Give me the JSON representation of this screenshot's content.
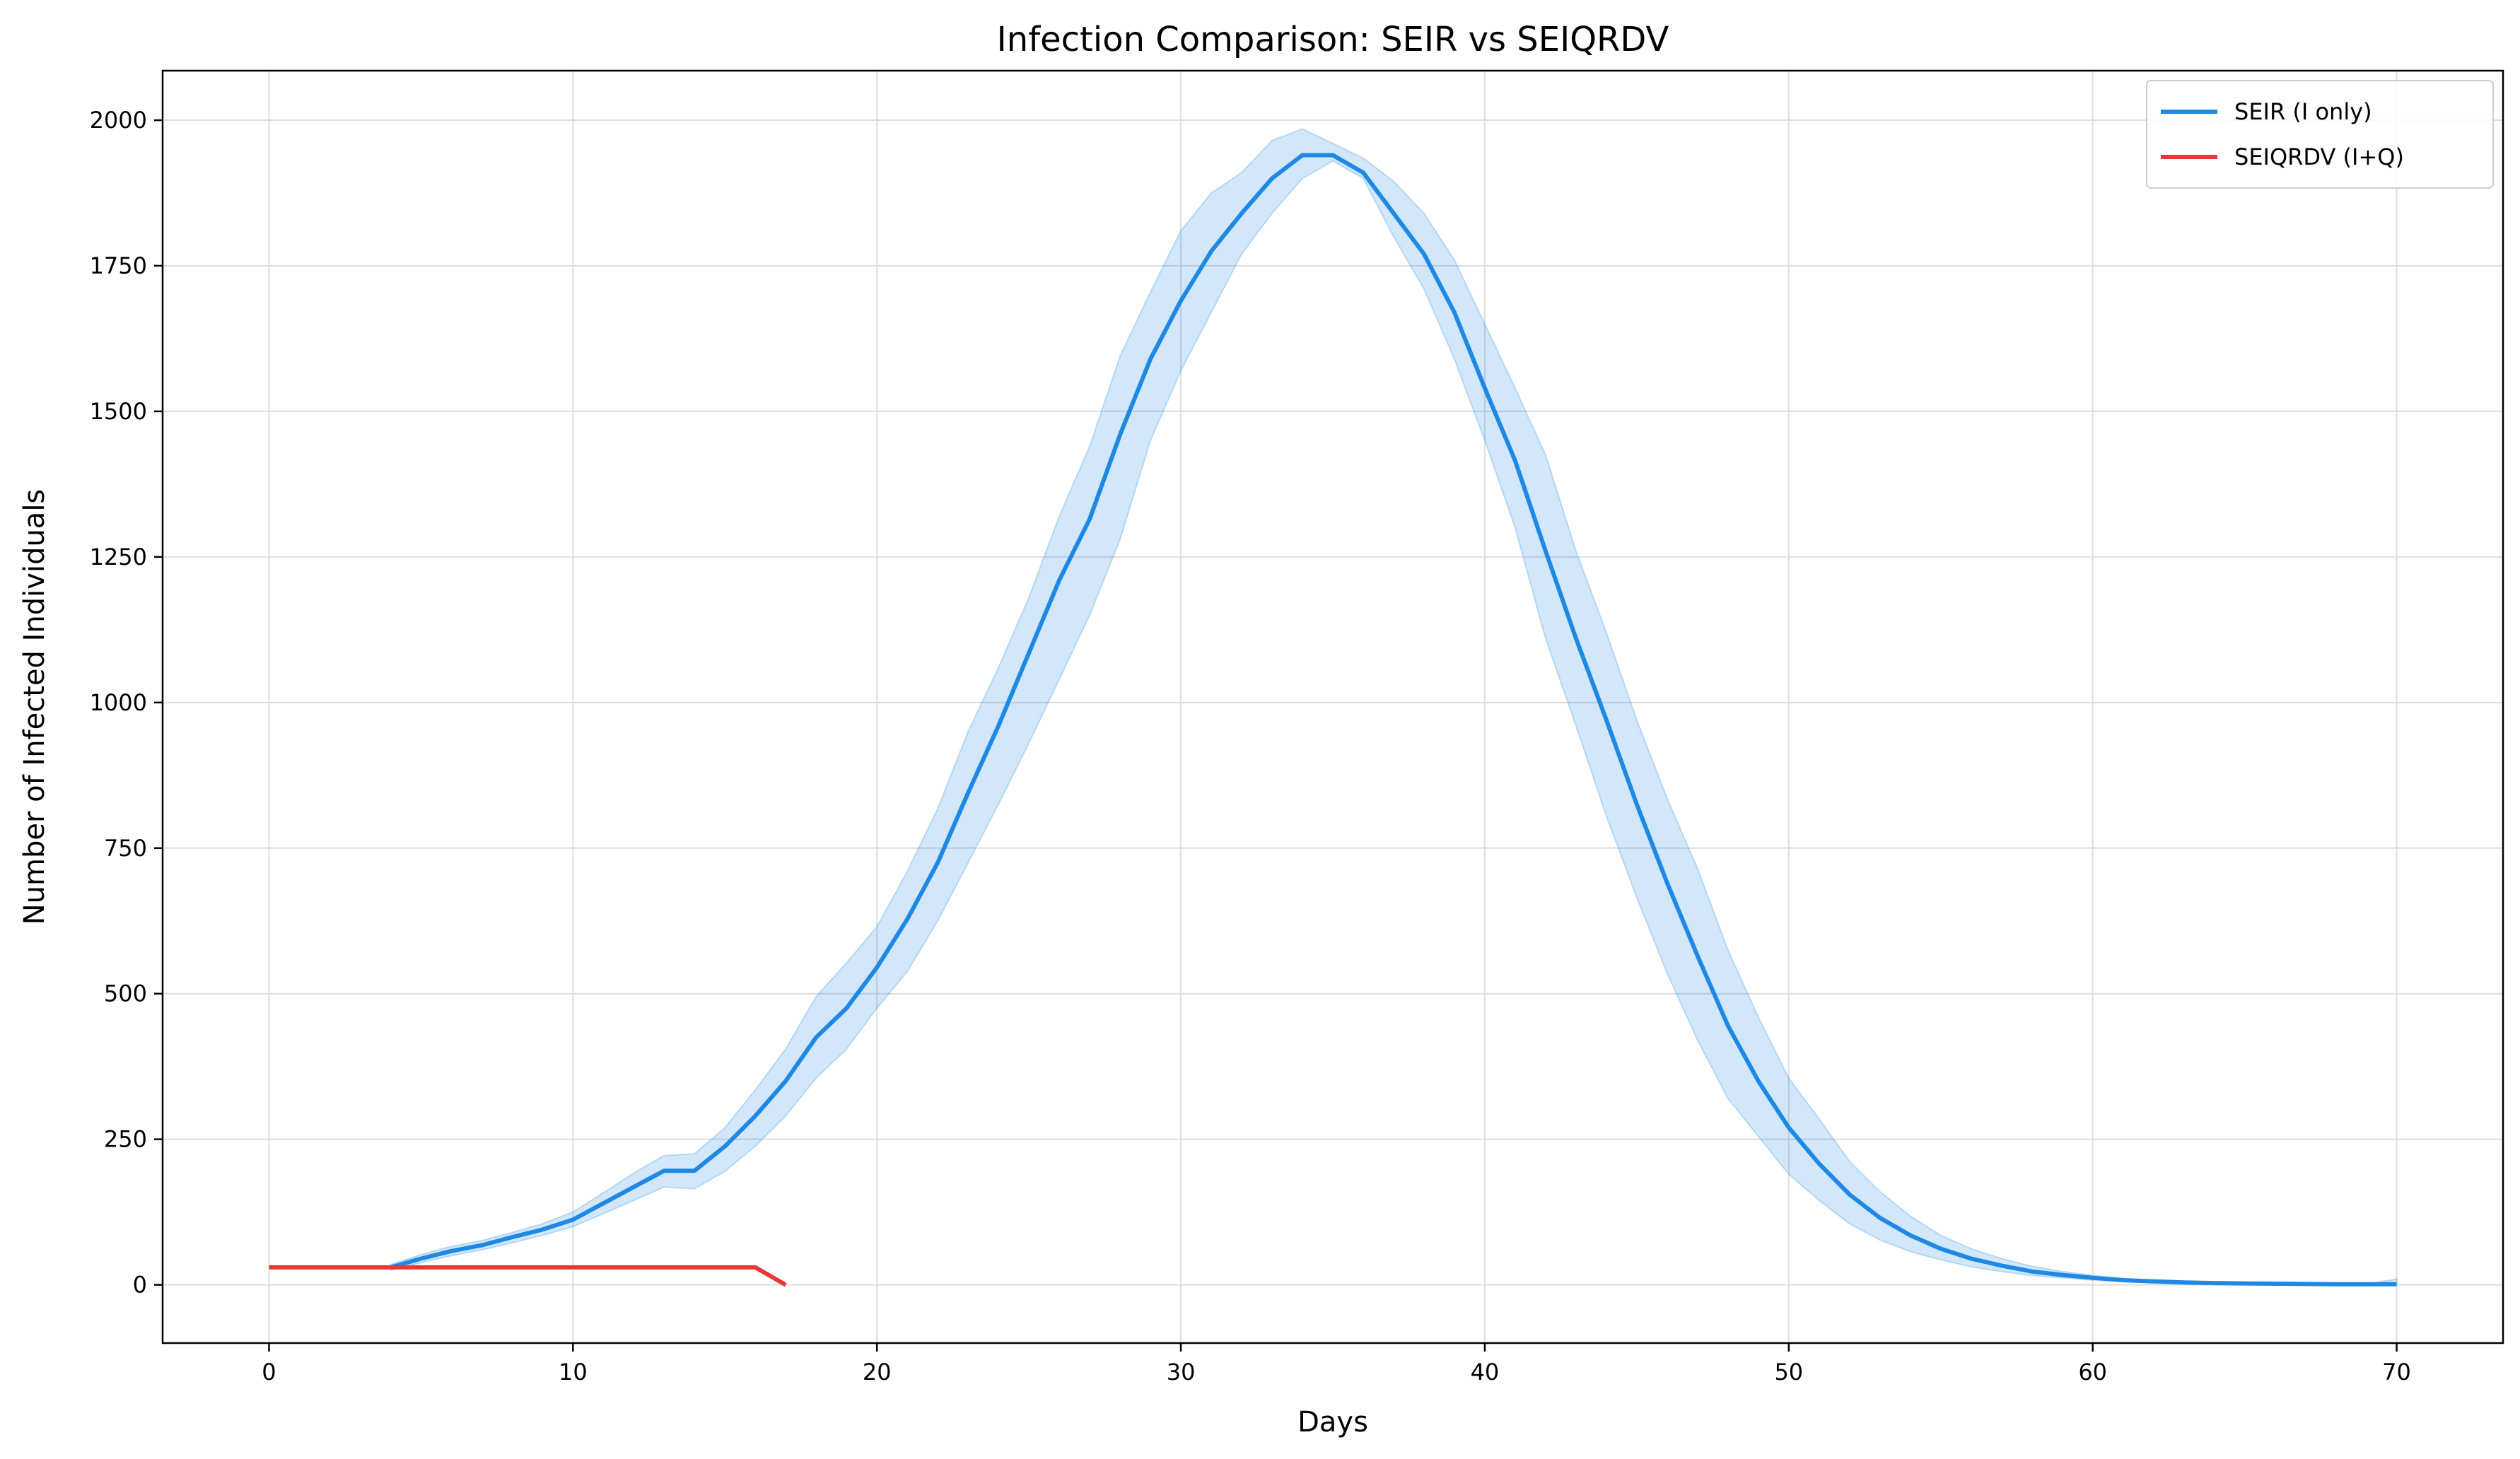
{
  "chart_data": {
    "type": "line",
    "title": "Infection Comparison: SEIR vs SEIQRDV",
    "xlabel": "Days",
    "ylabel": "Number of Infected Individuals",
    "xlim": [
      -3.5,
      73.5
    ],
    "ylim": [
      -100,
      2085
    ],
    "xticks": [
      0,
      10,
      20,
      30,
      40,
      50,
      60,
      70
    ],
    "yticks": [
      0,
      250,
      500,
      750,
      1000,
      1250,
      1500,
      1750,
      2000
    ],
    "grid": true,
    "legend_position": "top-right",
    "series": [
      {
        "name": "SEIR (I only)",
        "color": "#1e88e5",
        "band_color": "#1e88e5",
        "x": [
          4,
          5,
          6,
          7,
          8,
          9,
          10,
          11,
          12,
          13,
          14,
          15,
          16,
          17,
          18,
          19,
          20,
          21,
          22,
          23,
          24,
          25,
          26,
          27,
          28,
          29,
          30,
          31,
          32,
          33,
          34,
          35,
          36,
          37,
          38,
          39,
          40,
          41,
          42,
          43,
          44,
          45,
          46,
          47,
          48,
          49,
          50,
          51,
          52,
          53,
          54,
          55,
          56,
          57,
          58,
          59,
          60,
          61,
          62,
          63,
          64,
          65,
          66,
          67,
          68,
          69,
          70
        ],
        "values": [
          30,
          45,
          58,
          68,
          82,
          95,
          112,
          140,
          168,
          196,
          196,
          238,
          290,
          350,
          425,
          475,
          545,
          628,
          725,
          845,
          960,
          1085,
          1210,
          1315,
          1460,
          1590,
          1690,
          1775,
          1840,
          1900,
          1940,
          1940,
          1910,
          1840,
          1770,
          1670,
          1540,
          1415,
          1260,
          1110,
          970,
          825,
          690,
          565,
          445,
          350,
          270,
          208,
          155,
          115,
          85,
          62,
          45,
          33,
          23,
          17,
          12,
          8,
          6,
          4,
          3,
          2.5,
          2,
          1.5,
          1,
          1,
          1
        ],
        "band_lower": [
          25,
          38,
          50,
          60,
          72,
          85,
          100,
          122,
          145,
          168,
          165,
          195,
          238,
          290,
          355,
          405,
          475,
          538,
          625,
          725,
          825,
          930,
          1040,
          1150,
          1280,
          1450,
          1570,
          1670,
          1770,
          1840,
          1900,
          1930,
          1900,
          1800,
          1710,
          1590,
          1450,
          1300,
          1110,
          960,
          805,
          665,
          535,
          420,
          320,
          255,
          190,
          145,
          105,
          77,
          57,
          43,
          31,
          23,
          16,
          12,
          8,
          6,
          4,
          3,
          2,
          1.5,
          1,
          1,
          0.5,
          0.5,
          0.5
        ],
        "band_upper": [
          35,
          52,
          66,
          76,
          90,
          105,
          125,
          158,
          192,
          222,
          225,
          270,
          335,
          405,
          495,
          553,
          615,
          710,
          818,
          950,
          1060,
          1180,
          1320,
          1440,
          1595,
          1705,
          1810,
          1875,
          1910,
          1965,
          1985,
          1960,
          1935,
          1895,
          1840,
          1760,
          1650,
          1540,
          1425,
          1260,
          1120,
          970,
          835,
          715,
          575,
          460,
          355,
          285,
          212,
          160,
          118,
          85,
          62,
          45,
          32,
          23,
          16,
          11,
          8,
          6,
          5,
          4,
          3,
          2.5,
          2,
          1.5,
          10
        ]
      },
      {
        "name": "SEIQRDV (I+Q)",
        "color": "#e53935",
        "x": [
          0,
          1,
          2,
          3,
          4,
          5,
          6,
          7,
          8,
          9,
          10,
          11,
          12,
          13,
          14,
          15,
          16,
          17
        ],
        "values": [
          30,
          30,
          30,
          30,
          30,
          30,
          30,
          30,
          30,
          30,
          30,
          30,
          30,
          30,
          30,
          30,
          30,
          0
        ]
      }
    ]
  }
}
